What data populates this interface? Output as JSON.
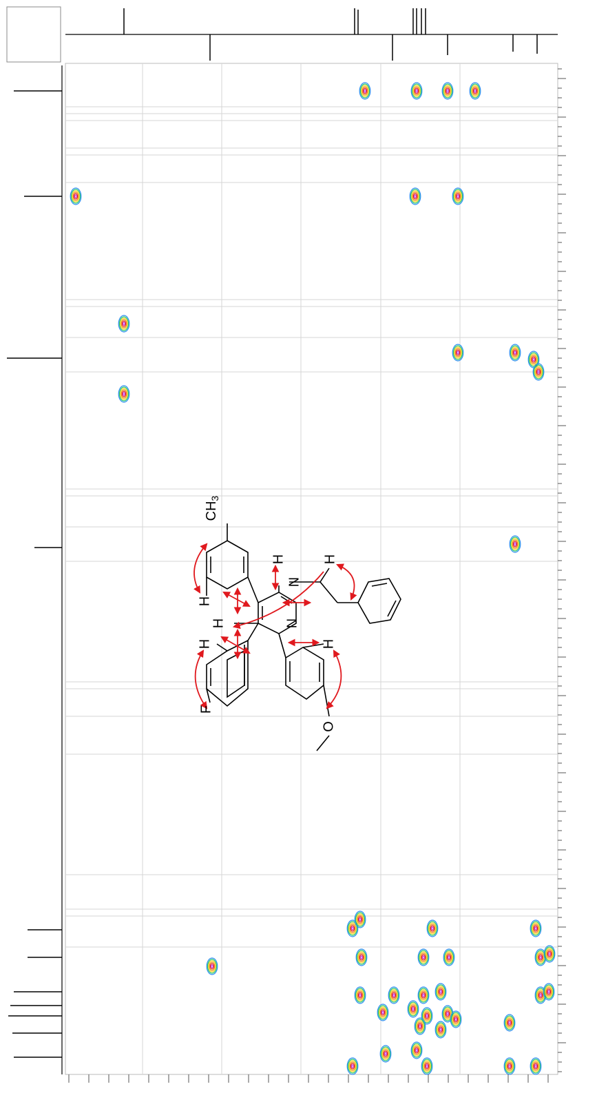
{
  "molecule": {
    "atoms": [
      {
        "label": "CH",
        "sub": "3"
      },
      {
        "label": "H"
      },
      {
        "label": "H"
      },
      {
        "label": "N"
      },
      {
        "label": "H"
      },
      {
        "label": "H"
      },
      {
        "label": "N"
      },
      {
        "label": "H"
      },
      {
        "label": "H"
      },
      {
        "label": "F"
      },
      {
        "label": "O"
      }
    ]
  }
}
